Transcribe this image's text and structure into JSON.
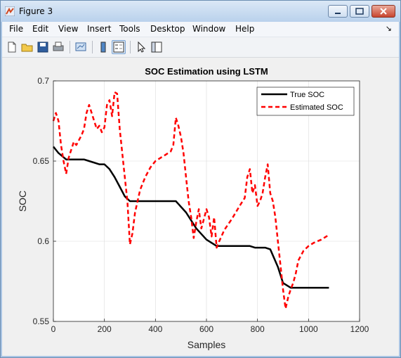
{
  "window": {
    "title": "Figure 3",
    "minimize_label": "minimize",
    "maximize_label": "maximize",
    "close_label": "close"
  },
  "menu": {
    "items": [
      "File",
      "Edit",
      "View",
      "Insert",
      "Tools",
      "Desktop",
      "Window",
      "Help"
    ],
    "dock_arrow": "↘"
  },
  "toolbar": {
    "icons": [
      "new-figure-icon",
      "open-file-icon",
      "save-icon",
      "print-icon",
      "link-plot-icon",
      "insert-colorbar-icon",
      "insert-legend-icon",
      "edit-plot-arrow-icon",
      "property-inspector-icon"
    ]
  },
  "colors": {
    "true_soc": "#000000",
    "estimated_soc": "#ff0000",
    "axes_bg": "#ffffff",
    "figure_bg": "#f0f0f0"
  },
  "chart_data": {
    "type": "line",
    "title": "SOC Estimation using LSTM",
    "xlabel": "Samples",
    "ylabel": "SOC",
    "xlim": [
      0,
      1200
    ],
    "ylim": [
      0.55,
      0.7
    ],
    "xticks": [
      0,
      200,
      400,
      600,
      800,
      1000,
      1200
    ],
    "yticks": [
      0.55,
      0.6,
      0.65,
      0.7
    ],
    "xtick_labels": [
      "0",
      "200",
      "400",
      "600",
      "800",
      "1000",
      "1200"
    ],
    "ytick_labels": [
      "0.55",
      "0.6",
      "0.65",
      "0.7"
    ],
    "grid": true,
    "legend_position": "top-right",
    "series": [
      {
        "name": "True SOC",
        "style": "solid",
        "x": [
          0,
          20,
          50,
          80,
          120,
          140,
          180,
          200,
          220,
          240,
          260,
          280,
          300,
          360,
          420,
          480,
          520,
          560,
          600,
          640,
          680,
          740,
          770,
          790,
          830,
          850,
          880,
          900,
          930,
          960,
          1000,
          1080
        ],
        "y": [
          0.659,
          0.655,
          0.651,
          0.651,
          0.651,
          0.65,
          0.648,
          0.648,
          0.645,
          0.64,
          0.634,
          0.628,
          0.625,
          0.625,
          0.625,
          0.625,
          0.618,
          0.608,
          0.601,
          0.597,
          0.597,
          0.597,
          0.597,
          0.596,
          0.596,
          0.595,
          0.584,
          0.574,
          0.571,
          0.571,
          0.571,
          0.571
        ]
      },
      {
        "name": "Estimated SOC",
        "style": "dashed",
        "x": [
          0,
          10,
          20,
          30,
          40,
          50,
          60,
          70,
          80,
          90,
          100,
          110,
          120,
          130,
          140,
          150,
          160,
          170,
          180,
          190,
          200,
          210,
          220,
          230,
          240,
          250,
          260,
          270,
          280,
          290,
          300,
          310,
          320,
          340,
          360,
          380,
          400,
          420,
          440,
          460,
          470,
          480,
          490,
          500,
          510,
          520,
          530,
          540,
          550,
          560,
          570,
          580,
          590,
          600,
          610,
          620,
          630,
          640,
          650,
          670,
          700,
          730,
          750,
          760,
          770,
          780,
          790,
          800,
          810,
          820,
          830,
          840,
          850,
          860,
          870,
          880,
          890,
          900,
          910,
          920,
          930,
          940,
          950,
          960,
          980,
          1000,
          1020,
          1050,
          1080
        ],
        "y": [
          0.675,
          0.68,
          0.675,
          0.66,
          0.65,
          0.642,
          0.652,
          0.657,
          0.662,
          0.66,
          0.663,
          0.666,
          0.67,
          0.68,
          0.685,
          0.68,
          0.675,
          0.67,
          0.672,
          0.668,
          0.671,
          0.685,
          0.688,
          0.678,
          0.693,
          0.692,
          0.67,
          0.655,
          0.64,
          0.625,
          0.598,
          0.605,
          0.618,
          0.632,
          0.64,
          0.646,
          0.65,
          0.652,
          0.654,
          0.656,
          0.66,
          0.677,
          0.672,
          0.665,
          0.655,
          0.64,
          0.625,
          0.615,
          0.602,
          0.612,
          0.62,
          0.608,
          0.614,
          0.62,
          0.615,
          0.603,
          0.615,
          0.596,
          0.6,
          0.607,
          0.614,
          0.622,
          0.627,
          0.64,
          0.645,
          0.63,
          0.635,
          0.622,
          0.625,
          0.63,
          0.64,
          0.648,
          0.63,
          0.625,
          0.615,
          0.6,
          0.585,
          0.57,
          0.558,
          0.565,
          0.57,
          0.574,
          0.58,
          0.588,
          0.594,
          0.597,
          0.599,
          0.601,
          0.604
        ]
      }
    ]
  }
}
